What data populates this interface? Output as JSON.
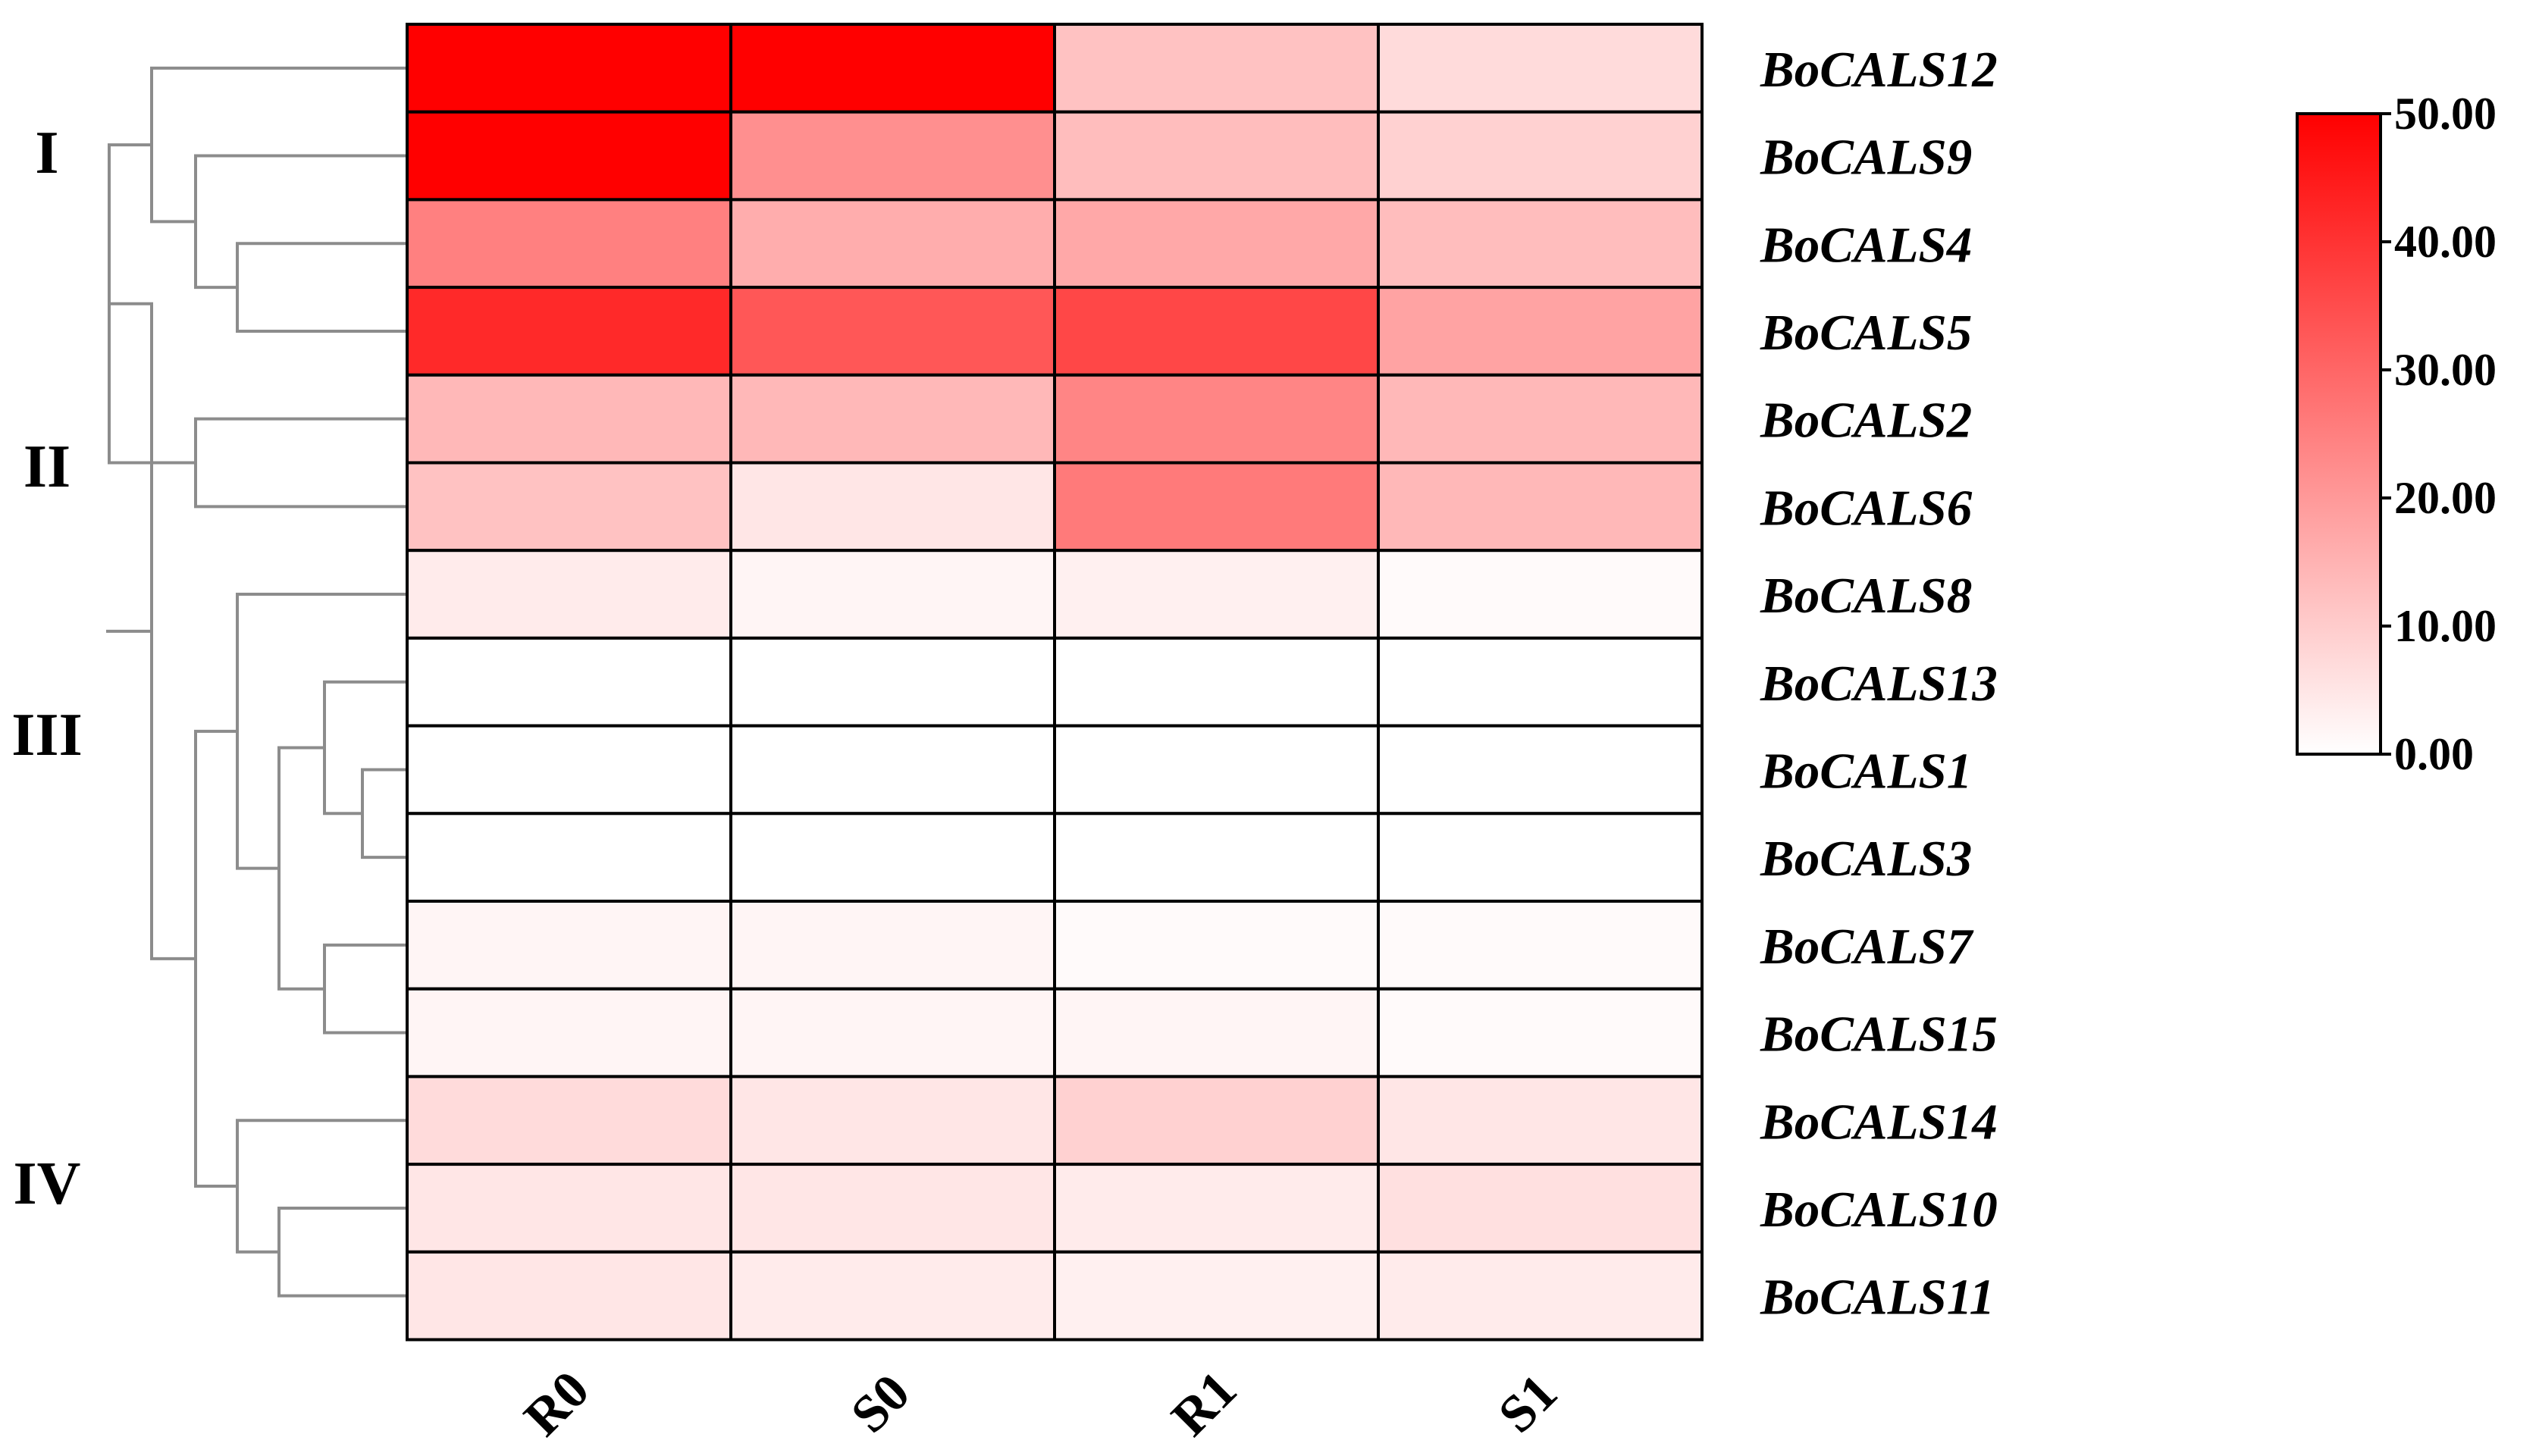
{
  "chart_data": {
    "type": "heatmap",
    "columns": [
      "R0",
      "S0",
      "R1",
      "S1"
    ],
    "rows": [
      "BoCALS12",
      "BoCALS9",
      "BoCALS4",
      "BoCALS5",
      "BoCALS2",
      "BoCALS6",
      "BoCALS8",
      "BoCALS13",
      "BoCALS1",
      "BoCALS3",
      "BoCALS7",
      "BoCALS15",
      "BoCALS14",
      "BoCALS10",
      "BoCALS11"
    ],
    "values": [
      [
        50,
        50,
        12,
        7
      ],
      [
        50,
        22,
        13,
        9
      ],
      [
        25,
        16,
        17,
        13
      ],
      [
        42,
        33,
        36,
        18
      ],
      [
        14,
        14,
        24,
        14
      ],
      [
        12,
        5,
        26,
        14
      ],
      [
        4,
        2,
        3,
        1
      ],
      [
        0,
        0,
        0,
        0
      ],
      [
        0,
        0,
        0,
        0
      ],
      [
        0,
        0,
        0,
        0
      ],
      [
        2,
        2,
        1,
        1
      ],
      [
        2,
        2,
        2,
        1
      ],
      [
        7,
        5,
        9,
        5
      ],
      [
        5,
        5,
        4,
        6
      ],
      [
        5,
        4,
        3,
        4
      ]
    ],
    "color_scale": {
      "min": 0,
      "max": 50,
      "low_color": "#ffffff",
      "high_color": "#ff0000",
      "tick_labels": [
        "50.00",
        "40.00",
        "30.00",
        "20.00",
        "10.00",
        "0.00"
      ],
      "ticks": [
        50,
        40,
        30,
        20,
        10,
        0
      ]
    },
    "clusters": [
      {
        "label": "I"
      },
      {
        "label": "II"
      },
      {
        "label": "III"
      },
      {
        "label": "IV"
      }
    ],
    "legend_placement": "right"
  }
}
